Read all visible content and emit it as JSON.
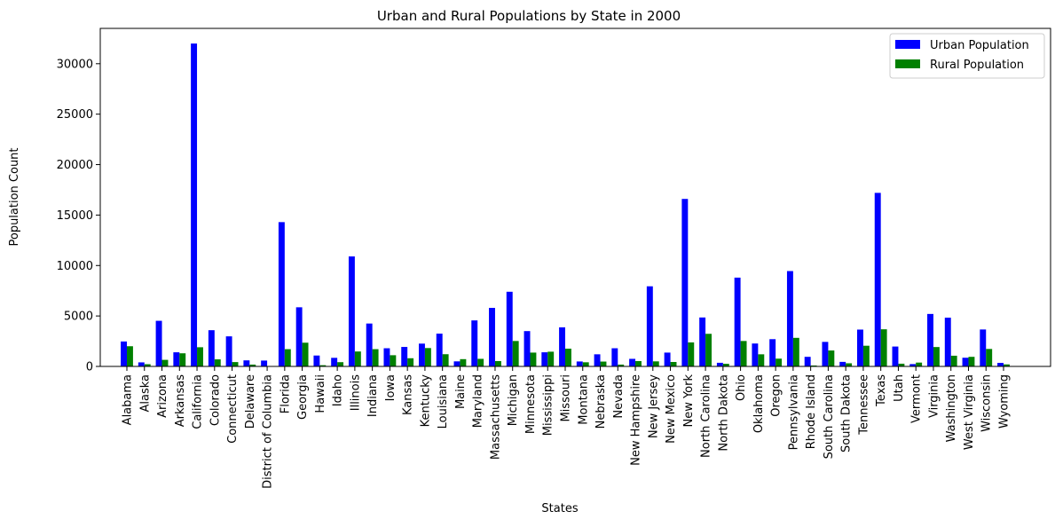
{
  "chart_data": {
    "type": "bar",
    "title": "Urban and Rural Populations by State in 2000",
    "xlabel": "States",
    "ylabel": "Population Count",
    "ylim": [
      0,
      33500
    ],
    "yticks": [
      0,
      5000,
      10000,
      15000,
      20000,
      25000,
      30000
    ],
    "grid": false,
    "legend_position": "top-right",
    "categories": [
      "Alabama",
      "Alaska",
      "Arizona",
      "Arkansas",
      "California",
      "Colorado",
      "Connecticut",
      "Delaware",
      "District of Columbia",
      "Florida",
      "Georgia",
      "Hawaii",
      "Idaho",
      "Illinois",
      "Indiana",
      "Iowa",
      "Kansas",
      "Kentucky",
      "Louisiana",
      "Maine",
      "Maryland",
      "Massachusetts",
      "Michigan",
      "Minnesota",
      "Mississippi",
      "Missouri",
      "Montana",
      "Nebraska",
      "Nevada",
      "New Hampshire",
      "New Jersey",
      "New Mexico",
      "New York",
      "North Carolina",
      "North Dakota",
      "Ohio",
      "Oklahoma",
      "Oregon",
      "Pennsylvania",
      "Rhode Island",
      "South Carolina",
      "South Dakota",
      "Tennessee",
      "Texas",
      "Utah",
      "Vermont",
      "Virginia",
      "Washington",
      "West Virginia",
      "Wisconsin",
      "Wyoming"
    ],
    "series": [
      {
        "name": "Urban Population",
        "color": "#0000ff",
        "values": [
          2470,
          400,
          4520,
          1400,
          32000,
          3590,
          2980,
          600,
          580,
          14300,
          5860,
          1080,
          850,
          10900,
          4250,
          1800,
          1930,
          2260,
          3250,
          500,
          4560,
          5800,
          7400,
          3500,
          1400,
          3870,
          490,
          1200,
          1800,
          750,
          7940,
          1370,
          16600,
          4850,
          360,
          8800,
          2270,
          2700,
          9450,
          950,
          2430,
          450,
          3650,
          17200,
          1970,
          230,
          5200,
          4830,
          860,
          3660,
          350
        ]
      },
      {
        "name": "Rural Population",
        "color": "#008000",
        "values": [
          2000,
          220,
          650,
          1300,
          1900,
          700,
          430,
          180,
          0,
          1710,
          2350,
          120,
          420,
          1480,
          1710,
          1110,
          810,
          1820,
          1210,
          720,
          750,
          530,
          2520,
          1370,
          1460,
          1760,
          410,
          480,
          180,
          530,
          500,
          440,
          2380,
          3230,
          260,
          2520,
          1200,
          770,
          2830,
          90,
          1580,
          310,
          2050,
          3680,
          270,
          380,
          1920,
          1060,
          950,
          1730,
          200
        ]
      }
    ]
  }
}
